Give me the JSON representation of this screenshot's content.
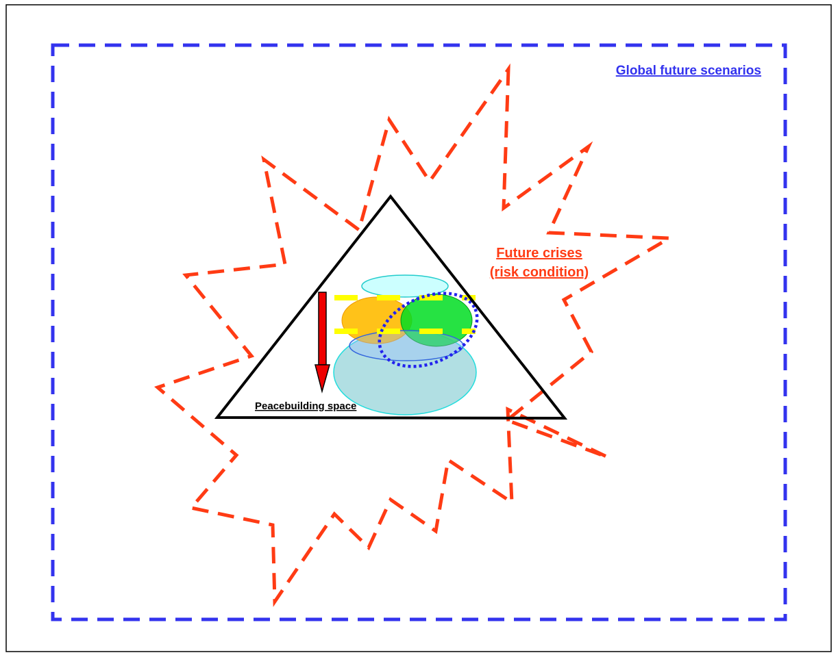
{
  "labels": {
    "global": "Global future scenarios",
    "crises_line1": "Future crises",
    "crises_line2": "(risk condition)",
    "peacebuilding": "Peacebuilding space"
  },
  "colors": {
    "frame": "#000000",
    "global_dash": "#3333ee",
    "crisis_dash": "#ff3b14",
    "triangle": "#000000",
    "arrow": "#ee0000",
    "ellipse_top": "#ccffff",
    "ellipse_orange": "#ffbb00",
    "ellipse_green": "#00dd22",
    "ellipse_big": "#a8dbe0",
    "ellipse_blue_outline": "#3366dd",
    "yellow_band": "#ffff00",
    "dotted_ellipse": "#2222ee"
  }
}
